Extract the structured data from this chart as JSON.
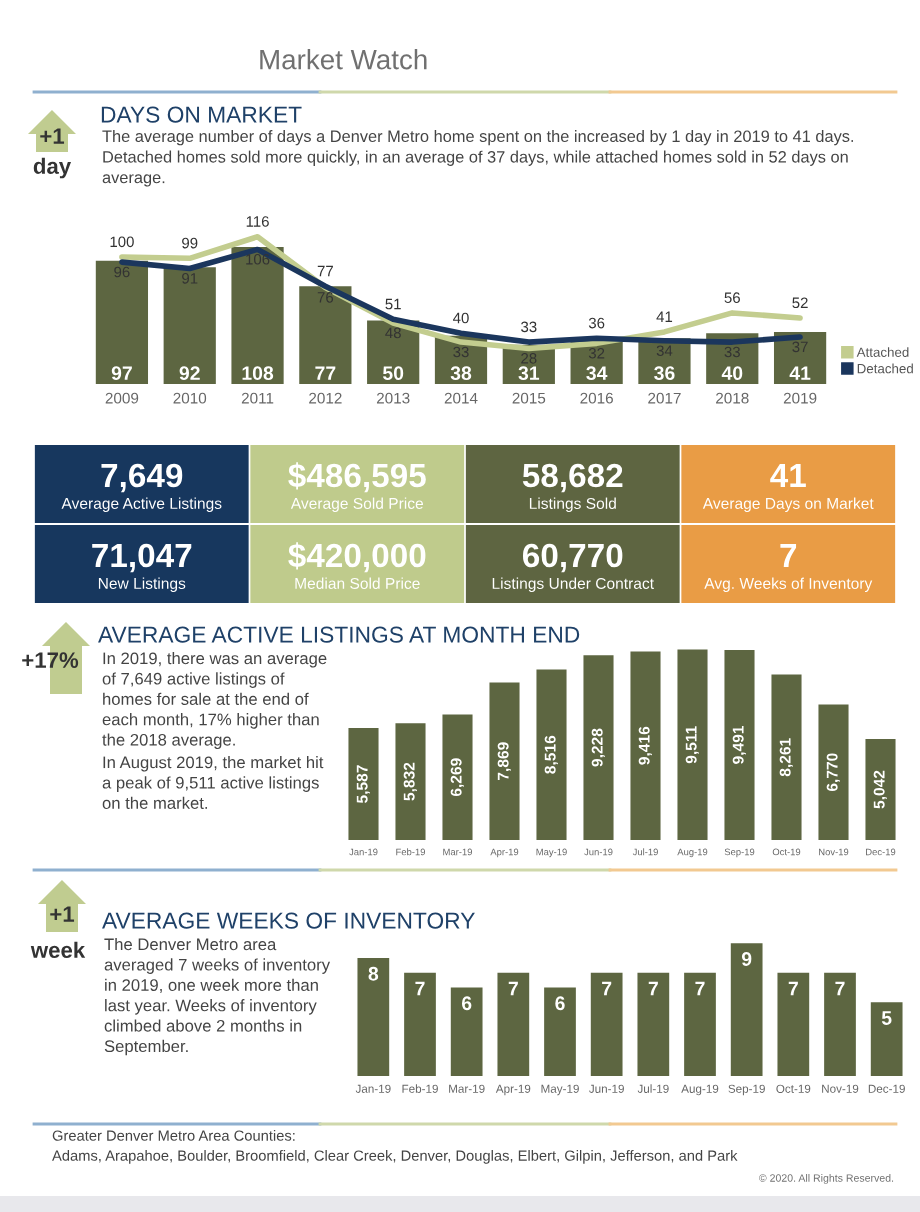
{
  "chart_data": [
    {
      "type": "bar",
      "title": "DAYS ON MARKET",
      "subtitle": "The average number of days a Denver Metro home spent on the increased by 1 day in 2019 to 41 days. Detached homes sold more quickly, in an average of 37 days, while attached homes sold in 52 days on average.",
      "annotations": [
        "Market Watch",
        "+1",
        "day"
      ],
      "categories": [
        "2009",
        "2010",
        "2011",
        "2012",
        "2013",
        "2014",
        "2015",
        "2016",
        "2017",
        "2018",
        "2019"
      ],
      "series": [
        {
          "name": "Attached",
          "type": "line",
          "color": "#c3cd8f",
          "values": [
            100,
            99,
            116,
            76,
            48,
            33,
            28,
            32,
            41,
            56,
            52
          ]
        },
        {
          "name": "Detached",
          "type": "line",
          "color": "#1b365d",
          "values": [
            96,
            91,
            106,
            77,
            51,
            40,
            33,
            36,
            34,
            33,
            37
          ]
        },
        {
          "type": "bar",
          "color": "#5d6641",
          "values": [
            97,
            92,
            108,
            77,
            50,
            38,
            31,
            34,
            36,
            40,
            41
          ]
        }
      ],
      "data_labels": true,
      "legend": "bottom right",
      "tick_labels": "x"
    },
    {
      "type": "other",
      "categories": [
        "Average Active Listings",
        "Average Sold Price",
        "Listings Sold",
        "Average Days on Market",
        "New Listings",
        "Median Sold Price",
        "Listings Under Contract",
        "Avg. Weeks of Inventory"
      ],
      "value_labels": [
        "7,649",
        "$486,595",
        "58,682",
        "41",
        "71,047",
        "$420,000",
        "60,770",
        "7"
      ],
      "colors": [
        "#17375e",
        "#bfcb8c",
        "#5e6541",
        "#e99c45",
        "#17375e",
        "#bfcb8c",
        "#5e6541",
        "#e99c45"
      ]
    },
    {
      "type": "bar",
      "title": "AVERAGE ACTIVE LISTINGS AT MONTH END",
      "annotations": [
        "+17%",
        "In 2019, there was an average of 7,649 active listings of homes for sale at the end of each month, 17% higher than the 2018 average.",
        "In August 2019, the market hit a peak of 9,511 active listings on the market."
      ],
      "categories": [
        "Jan-19",
        "Feb-19",
        "Mar-19",
        "Apr-19",
        "May-19",
        "Jun-19",
        "Jul-19",
        "Aug-19",
        "Sep-19",
        "Oct-19",
        "Nov-19",
        "Dec-19"
      ],
      "values": [
        5587,
        5832,
        6269,
        7869,
        8516,
        9228,
        9416,
        9511,
        9491,
        8261,
        6770,
        5042
      ],
      "value_labels": [
        "5,587",
        "5,832",
        "6,269",
        "7,869",
        "8,516",
        "9,228",
        "9,416",
        "9,511",
        "9,491",
        "8,261",
        "6,770",
        "5,042"
      ],
      "color": "#5d6641",
      "tick_labels": "x"
    },
    {
      "type": "bar",
      "title": "AVERAGE WEEKS OF INVENTORY",
      "subtitle": "The Denver Metro area averaged 7 weeks of inventory in 2019, one week more than last year. Weeks of inventory climbed above 2 months in September.",
      "annotations": [
        "+1",
        "week",
        "Greater Denver Metro Area Counties:",
        "Adams, Arapahoe, Boulder, Broomfield, Clear Creek, Denver, Douglas, Elbert, Gilpin, Jefferson, and Park",
        "© 2020. All Rights Reserved."
      ],
      "categories": [
        "Jan-19",
        "Feb-19",
        "Mar-19",
        "Apr-19",
        "May-19",
        "Jun-19",
        "Jul-19",
        "Aug-19",
        "Sep-19",
        "Oct-19",
        "Nov-19",
        "Dec-19"
      ],
      "values": [
        8,
        7,
        6,
        7,
        6,
        7,
        7,
        7,
        9,
        7,
        7,
        5
      ],
      "data_labels": true,
      "color": "#5d6641",
      "tick_labels": "x"
    }
  ]
}
